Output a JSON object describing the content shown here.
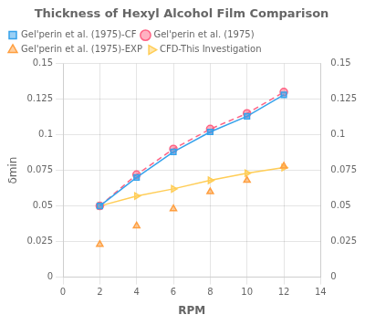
{
  "chart_data": {
    "type": "line",
    "title": "Thickness of Hexyl Alcohol Film Comparison",
    "x_label": "RPM",
    "y_label": "δmin",
    "x": [
      2,
      4,
      6,
      8,
      10,
      12
    ],
    "series": [
      {
        "name": "Gel'perin et al. (1975)-CF",
        "values": [
          0.05,
          0.07,
          0.088,
          0.102,
          0.113,
          0.128
        ],
        "marker": "square",
        "line_style": "solid"
      },
      {
        "name": "Gel'perin et al. (1975)",
        "values": [
          0.05,
          0.072,
          0.09,
          0.104,
          0.115,
          0.13
        ],
        "marker": "circle",
        "line_style": "dashed"
      },
      {
        "name": "Gel'perin et al. (1975)-EXP",
        "values": [
          0.023,
          0.036,
          0.048,
          0.06,
          0.068,
          0.078
        ],
        "marker": "triangle",
        "line_style": "none"
      },
      {
        "name": "CFD-This Investigation",
        "values": [
          0.05,
          0.057,
          0.062,
          0.068,
          0.073,
          0.077
        ],
        "marker": "triangle_right",
        "line_style": "solid"
      }
    ],
    "xlim": [
      0,
      14
    ],
    "xticks": [
      0,
      2,
      4,
      6,
      8,
      10,
      12,
      14
    ],
    "ylim": [
      0,
      0.15
    ],
    "yticks": [
      0,
      0.025,
      0.05,
      0.075,
      0.1,
      0.125,
      0.15
    ],
    "y2lim": [
      0,
      0.15
    ],
    "y2ticks": [
      0,
      0.025,
      0.05,
      0.075,
      0.1,
      0.125,
      0.15
    ],
    "grid": true,
    "legend": "upper left"
  }
}
